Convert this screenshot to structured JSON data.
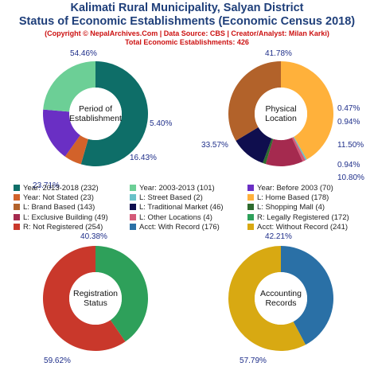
{
  "header": {
    "title_line1": "Kalimati Rural Municipality, Salyan District",
    "title_line2": "Status of Economic Establishments (Economic Census 2018)",
    "copyright": "(Copyright © NepalArchives.Com | Data Source: CBS | Creator/Analyst: Milan Karki)",
    "total": "Total Economic Establishments: 426"
  },
  "chart_data": [
    {
      "type": "pie",
      "center_label": [
        "Period of",
        "Establishment"
      ],
      "slices": [
        {
          "label": "Year: 2013-2018",
          "value": 232,
          "percent": "54.46%",
          "color": "#0e6e68"
        },
        {
          "label": "Year: Not Stated",
          "value": 23,
          "percent": "5.40%",
          "color": "#d2622a"
        },
        {
          "label": "Year: Before 2003",
          "value": 70,
          "percent": "16.43%",
          "color": "#6a2fc4"
        },
        {
          "label": "Year: 2003-2013",
          "value": 101,
          "percent": "23.71%",
          "color": "#6ccf96"
        }
      ]
    },
    {
      "type": "pie",
      "center_label": [
        "Physical",
        "Location"
      ],
      "slices": [
        {
          "label": "L: Home Based",
          "value": 178,
          "percent": "41.78%",
          "color": "#ffb13b"
        },
        {
          "label": "L: Street Based",
          "value": 2,
          "percent": "0.47%",
          "color": "#69c1c8"
        },
        {
          "label": "L: Other Locations",
          "value": 4,
          "percent": "0.94%",
          "color": "#d45a78"
        },
        {
          "label": "L: Exclusive Building",
          "value": 49,
          "percent": "11.50%",
          "color": "#a52a4f"
        },
        {
          "label": "L: Shopping Mall",
          "value": 4,
          "percent": "0.94%",
          "color": "#2e6b2e"
        },
        {
          "label": "L: Traditional Market",
          "value": 46,
          "percent": "10.80%",
          "color": "#0f0e4e"
        },
        {
          "label": "L: Brand Based",
          "value": 143,
          "percent": "33.57%",
          "color": "#b2622a"
        }
      ]
    },
    {
      "type": "pie",
      "center_label": [
        "Registration",
        "Status"
      ],
      "slices": [
        {
          "label": "R: Legally Registered",
          "value": 172,
          "percent": "40.38%",
          "color": "#2ea05a"
        },
        {
          "label": "R: Not Registered",
          "value": 254,
          "percent": "59.62%",
          "color": "#c9382b"
        }
      ]
    },
    {
      "type": "pie",
      "center_label": [
        "Accounting",
        "Records"
      ],
      "slices": [
        {
          "label": "Acct: With Record",
          "value": 176,
          "percent": "42.21%",
          "color": "#2a70a6"
        },
        {
          "label": "Acct: Without Record",
          "value": 241,
          "percent": "57.79%",
          "color": "#d8a912"
        }
      ]
    }
  ],
  "legend": [
    {
      "text": "Year: 2013-2018 (232)",
      "color": "#0e6e68"
    },
    {
      "text": "Year: 2003-2013 (101)",
      "color": "#6ccf96"
    },
    {
      "text": "Year: Before 2003 (70)",
      "color": "#6a2fc4"
    },
    {
      "text": "Year: Not Stated (23)",
      "color": "#d2622a"
    },
    {
      "text": "L: Street Based (2)",
      "color": "#69c1c8"
    },
    {
      "text": "L: Home Based (178)",
      "color": "#ffb13b"
    },
    {
      "text": "L: Brand Based (143)",
      "color": "#b2622a"
    },
    {
      "text": "L: Traditional Market (46)",
      "color": "#0f0e4e"
    },
    {
      "text": "L: Shopping Mall (4)",
      "color": "#2e6b2e"
    },
    {
      "text": "L: Exclusive Building (49)",
      "color": "#a52a4f"
    },
    {
      "text": "L: Other Locations (4)",
      "color": "#d45a78"
    },
    {
      "text": "R: Legally Registered (172)",
      "color": "#2ea05a"
    },
    {
      "text": "R: Not Registered (254)",
      "color": "#c9382b"
    },
    {
      "text": "Acct: With Record (176)",
      "color": "#2a70a6"
    },
    {
      "text": "Acct: Without Record (241)",
      "color": "#d8a912"
    }
  ]
}
